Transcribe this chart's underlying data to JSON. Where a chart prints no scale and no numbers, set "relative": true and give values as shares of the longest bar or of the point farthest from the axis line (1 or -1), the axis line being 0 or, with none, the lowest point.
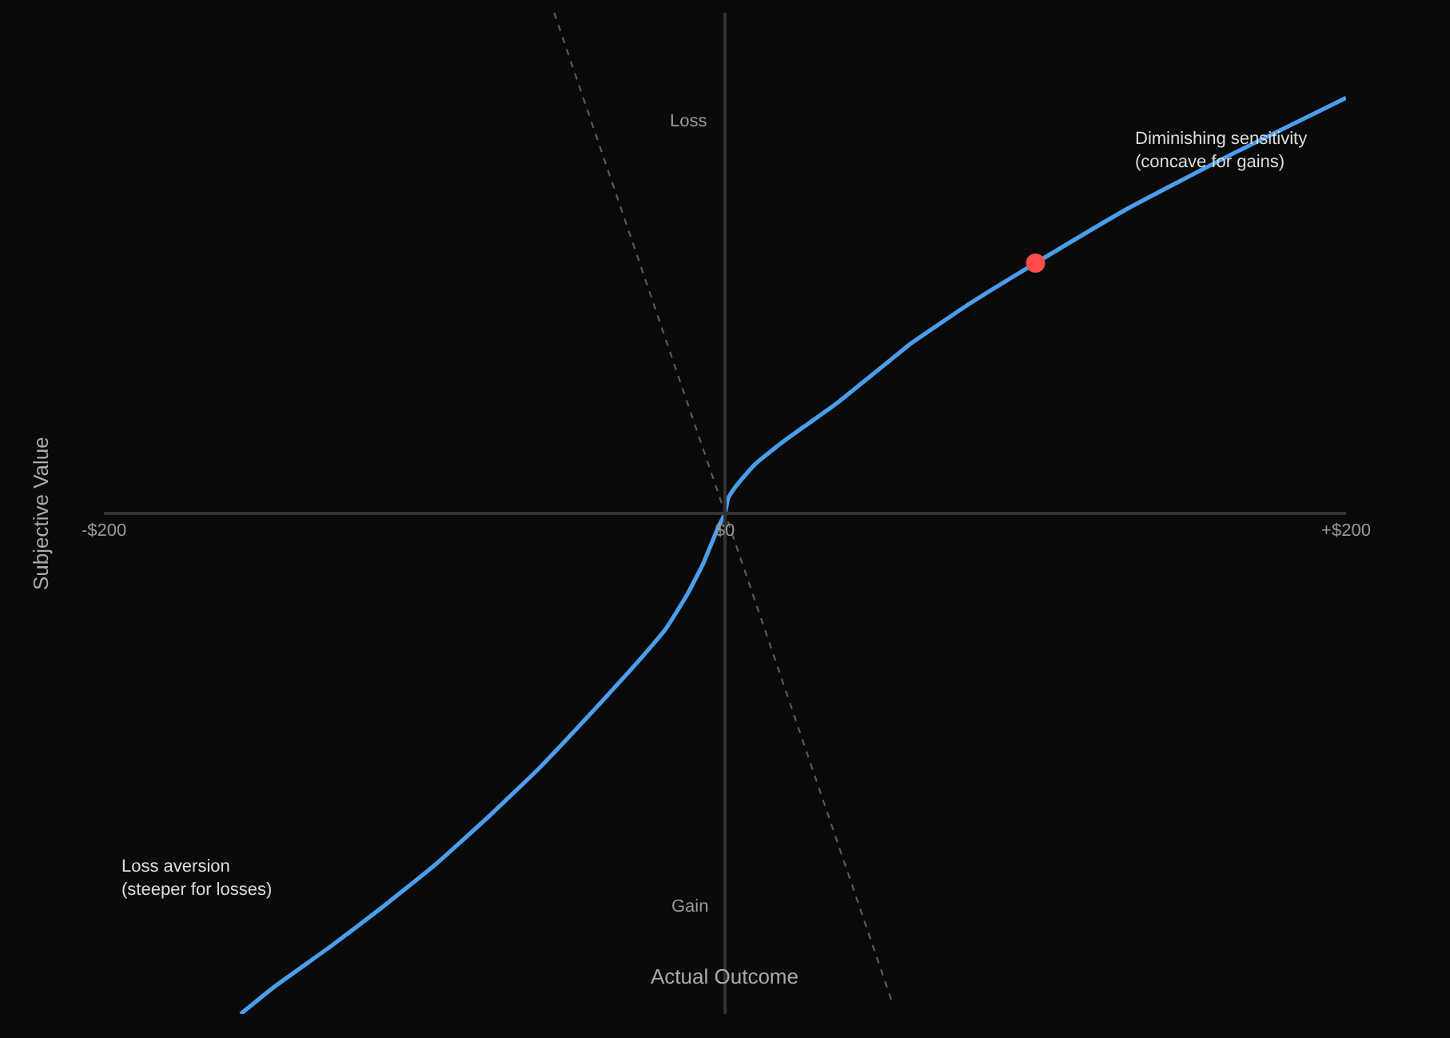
{
  "chart_data": {
    "type": "line",
    "xlabel": "Actual Outcome",
    "ylabel": "Subjective Value",
    "relative": true,
    "xlim": [
      -200,
      200
    ],
    "xticks": [
      {
        "value": -200,
        "label": "-$200"
      },
      {
        "value": 0,
        "label": "$0"
      },
      {
        "value": 200,
        "label": "+$200"
      }
    ],
    "series": [
      {
        "color": "#4a9eed",
        "x": [
          -156,
          -145,
          -127,
          -110,
          -93,
          -76,
          -60,
          -47,
          -30,
          -19,
          -12,
          -7,
          -4,
          -2,
          0,
          1,
          3,
          7,
          10,
          18,
          27,
          36,
          44,
          53,
          60,
          79,
          100,
          130,
          164,
          200
        ],
        "values": [
          -1.0,
          -0.945,
          -0.865,
          -0.785,
          -0.7,
          -0.605,
          -0.51,
          -0.425,
          -0.31,
          -0.23,
          -0.16,
          -0.1,
          -0.055,
          -0.025,
          0,
          0.03,
          0.05,
          0.08,
          0.1,
          0.14,
          0.18,
          0.22,
          0.26,
          0.305,
          0.34,
          0.42,
          0.5,
          0.61,
          0.72,
          0.83
        ]
      },
      {
        "color": "#5a5a5a",
        "line_style": "dashed",
        "x": [
          -55,
          54
        ],
        "values": [
          1.0,
          -0.98
        ]
      },
      {
        "type": "scatter",
        "color": "#ff4d4d",
        "marker": "circle",
        "x": [
          100
        ],
        "values": [
          0.5
        ]
      }
    ],
    "annotations": [
      "Loss",
      "Gain",
      "Diminishing sensitivity\n(concave for gains)",
      "Loss aversion\n(steeper for losses)"
    ]
  }
}
